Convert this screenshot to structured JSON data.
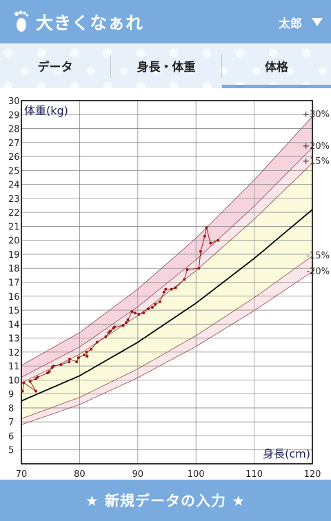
{
  "header": {
    "title": "大きくなぁれ",
    "user_name": "太郎",
    "foot_icon": "footprint-icon",
    "dropdown_icon": "triangle-down-icon"
  },
  "tabs": [
    {
      "label": "データ",
      "selected": false
    },
    {
      "label": "身長・体重",
      "selected": false
    },
    {
      "label": "体格",
      "selected": true
    }
  ],
  "chart_data": {
    "type": "line",
    "xlabel": "身長(cm)",
    "ylabel": "体重(kg)",
    "xlim": [
      70,
      120
    ],
    "ylim": [
      4,
      30
    ],
    "x_ticks": [
      70,
      80,
      90,
      100,
      110,
      120
    ],
    "y_ticks": [
      5,
      6,
      7,
      8,
      9,
      10,
      11,
      12,
      13,
      14,
      15,
      16,
      17,
      18,
      19,
      20,
      21,
      22,
      23,
      24,
      25,
      26,
      27,
      28,
      29,
      30
    ],
    "grid": true,
    "curve_labels": [
      "+30%",
      "+20%",
      "+15%",
      "-15%",
      "-20%"
    ],
    "standard_curve": {
      "x": [
        70,
        80,
        90,
        100,
        110,
        120
      ],
      "y": [
        8.5,
        10.3,
        12.7,
        15.5,
        18.7,
        22.2
      ]
    },
    "band_multipliers": [
      1.3,
      1.2,
      1.15,
      0.85,
      0.8
    ],
    "series": [
      {
        "x": [
          70.2,
          70.4,
          72.5,
          71.5,
          72.5,
          72.8,
          74.5,
          74.8,
          75.3,
          75.5,
          76.8,
          78.2,
          78.3,
          79.5,
          79.8,
          80.8,
          81.3,
          81.2,
          82.0,
          83.0,
          84.5,
          85.0,
          85.3,
          85.8,
          86.0,
          87.5,
          88.0,
          88.3,
          89.0,
          89.5,
          90.2,
          91.0,
          91.8,
          92.5,
          93.0,
          93.8,
          94.5,
          94.8,
          95.8,
          96.5,
          98.0,
          98.5,
          100.5,
          100.8,
          101.5,
          101.8,
          102.5,
          103.8
        ],
        "y": [
          9.2,
          9.8,
          9.2,
          9.9,
          10.1,
          10.2,
          10.5,
          10.6,
          10.9,
          11.0,
          11.1,
          11.3,
          11.5,
          11.3,
          11.6,
          11.8,
          11.7,
          12.0,
          12.2,
          12.7,
          13.1,
          13.4,
          13.5,
          13.7,
          13.8,
          13.9,
          14.1,
          14.3,
          14.9,
          14.8,
          14.7,
          14.8,
          15.1,
          15.2,
          15.4,
          15.6,
          16.3,
          16.5,
          16.5,
          16.6,
          17.2,
          17.9,
          18.0,
          19.2,
          20.3,
          20.9,
          19.8,
          20.0
        ]
      }
    ],
    "colors": {
      "band_outer": "#f7d3de",
      "band_inner": "#fbfbdc",
      "standard_line": "#000000",
      "band_line": "#8b4a4a",
      "data": "#a01818"
    }
  },
  "footer": {
    "button_label": "★ 新規データの入力 ★"
  }
}
